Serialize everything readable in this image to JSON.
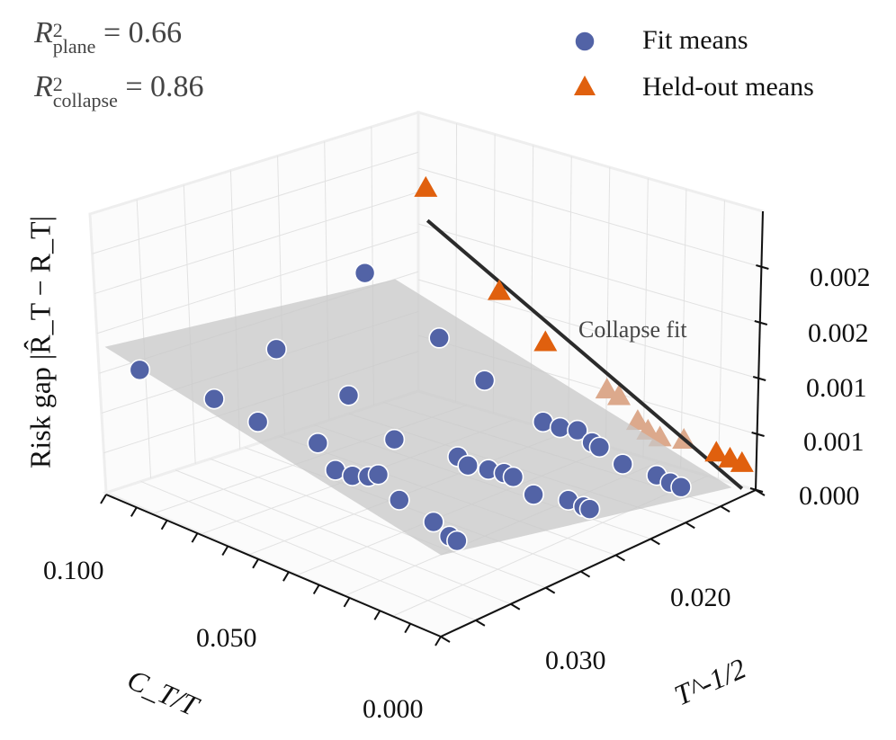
{
  "annotations": {
    "r2_plane": {
      "symbol": "R",
      "sup": "2",
      "sub": "plane",
      "value": "= 0.66"
    },
    "r2_collapse": {
      "symbol": "R",
      "sup": "2",
      "sub": "collapse",
      "value": "= 0.86"
    },
    "collapse_label": "Collapse fit"
  },
  "legend": {
    "fit_means": "Fit means",
    "held_out_means": "Held-out means"
  },
  "colors": {
    "fit": "#5263a6",
    "held_out": "#e0600e",
    "held_out_faded": "#dca98c",
    "plane": "#c8c8c8",
    "line": "#2b2b2b"
  },
  "chart_data": {
    "type": "scatter3d",
    "xlabel": "C_T/T",
    "ylabel": "T^-1/2",
    "zlabel": "Risk gap |R̂_T − R_T|",
    "x_ticks": [
      "0.100",
      "0.050",
      "0.000"
    ],
    "y_ticks": [
      "0.020",
      "0.030"
    ],
    "z_ticks": [
      "0.000",
      "0.001",
      "0.001",
      "0.002",
      "0.002"
    ],
    "z_tick_values": [
      0,
      0.0005,
      0.001,
      0.0015,
      0.002
    ],
    "xlim": [
      0,
      0.12
    ],
    "ylim": [
      0.0145,
      0.033
    ],
    "zlim": [
      0,
      0.0025
    ],
    "plane": {
      "x_range": [
        0.005,
        0.115
      ],
      "y_range": [
        0.015,
        0.032
      ],
      "z_at_min": 0.0,
      "dz_dx": 0.00545,
      "dz_dy": 0.0353
    },
    "collapse_fit": [
      {
        "x": 0,
        "y": 0.0337,
        "z": 0.00378
      },
      {
        "x": 0,
        "y": 0.0153,
        "z": 7e-05
      }
    ],
    "fit_means": [
      {
        "x": 0.117,
        "y": 0.0296,
        "z": 0.0008
      },
      {
        "x": 0.11,
        "y": 0.0265,
        "z": 0.0004
      },
      {
        "x": 0.094,
        "y": 0.0268,
        "z": 0.0004
      },
      {
        "x": 0.093,
        "y": 0.0259,
        "z": 0.001
      },
      {
        "x": 0.073,
        "y": 0.0243,
        "z": 0.0018
      },
      {
        "x": 0.08,
        "y": 0.024,
        "z": 0.0006
      },
      {
        "x": 0.08,
        "y": 0.0258,
        "z": 0.0003
      },
      {
        "x": 0.067,
        "y": 0.0271,
        "z": 0.0003
      },
      {
        "x": 0.062,
        "y": 0.027,
        "z": 0.0003
      },
      {
        "x": 0.059,
        "y": 0.0266,
        "z": 0.0003
      },
      {
        "x": 0.058,
        "y": 0.0262,
        "z": 0.0003
      },
      {
        "x": 0.06,
        "y": 0.0249,
        "z": 0.0005
      },
      {
        "x": 0.045,
        "y": 0.0273,
        "z": 0.0003
      },
      {
        "x": 0.061,
        "y": 0.0221,
        "z": 0.0012
      },
      {
        "x": 0.054,
        "y": 0.0207,
        "z": 0.0008
      },
      {
        "x": 0.051,
        "y": 0.0228,
        "z": 0.0003
      },
      {
        "x": 0.046,
        "y": 0.0231,
        "z": 0.0003
      },
      {
        "x": 0.041,
        "y": 0.0228,
        "z": 0.0003
      },
      {
        "x": 0.037,
        "y": 0.0226,
        "z": 0.0003
      },
      {
        "x": 0.034,
        "y": 0.0226,
        "z": 0.0003
      },
      {
        "x": 0.024,
        "y": 0.0232,
        "z": 0.0003
      },
      {
        "x": 0.041,
        "y": 0.0196,
        "z": 0.0005
      },
      {
        "x": 0.036,
        "y": 0.0195,
        "z": 0.0005
      },
      {
        "x": 0.032,
        "y": 0.0192,
        "z": 0.0005
      },
      {
        "x": 0.025,
        "y": 0.0196,
        "z": 0.0005
      },
      {
        "x": 0.022,
        "y": 0.0197,
        "z": 0.0005
      },
      {
        "x": 0.02,
        "y": 0.0187,
        "z": 0.0003
      },
      {
        "x": 0.016,
        "y": 0.0226,
        "z": 0.0003
      },
      {
        "x": 0.011,
        "y": 0.0226,
        "z": 0.0003
      },
      {
        "x": 0.009,
        "y": 0.0226,
        "z": 0.0003
      },
      {
        "x": 0.01,
        "y": 0.0185,
        "z": 0.0003
      },
      {
        "x": 0.005,
        "y": 0.0186,
        "z": 0.0003
      },
      {
        "x": 0.0015,
        "y": 0.0186,
        "z": 0.0003
      },
      {
        "x": 0.031,
        "y": 0.0278,
        "z": 0.0003
      },
      {
        "x": 0.023,
        "y": 0.0283,
        "z": 0.0003
      },
      {
        "x": 0.02,
        "y": 0.0284,
        "z": 0.0003
      }
    ],
    "held_out_means": [
      {
        "x": 0,
        "y": 0.0338,
        "z": 0.00408,
        "behind_plane": false
      },
      {
        "x": 0,
        "y": 0.0295,
        "z": 0.00285,
        "behind_plane": false
      },
      {
        "x": 0,
        "y": 0.0268,
        "z": 0.0022,
        "behind_plane": false
      },
      {
        "x": 0,
        "y": 0.0232,
        "z": 0.00152,
        "behind_plane": true
      },
      {
        "x": 0,
        "y": 0.0225,
        "z": 0.00141,
        "behind_plane": true
      },
      {
        "x": 0,
        "y": 0.0214,
        "z": 0.00111,
        "behind_plane": true
      },
      {
        "x": 0,
        "y": 0.0208,
        "z": 0.00098,
        "behind_plane": true
      },
      {
        "x": 0,
        "y": 0.0201,
        "z": 0.00087,
        "behind_plane": true
      },
      {
        "x": 0,
        "y": 0.0187,
        "z": 0.00075,
        "behind_plane": true
      },
      {
        "x": 0,
        "y": 0.0168,
        "z": 0.0005,
        "behind_plane": false
      },
      {
        "x": 0,
        "y": 0.016,
        "z": 0.00039,
        "behind_plane": false
      },
      {
        "x": 0,
        "y": 0.0153,
        "z": 0.0003,
        "behind_plane": false
      }
    ]
  }
}
